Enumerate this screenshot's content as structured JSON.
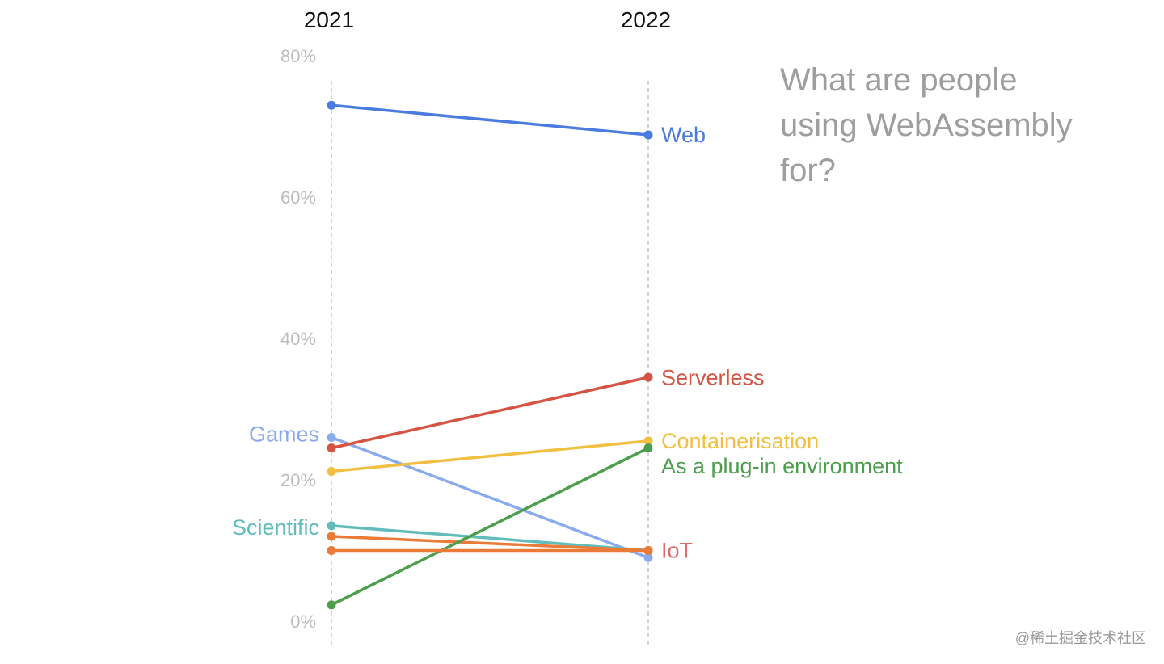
{
  "chart_data": {
    "type": "line",
    "title_lines": [
      "What are people",
      "using WebAssembly",
      "for?"
    ],
    "x": [
      "2021",
      "2022"
    ],
    "ylim": [
      0,
      80
    ],
    "yticks": [
      {
        "value": 0,
        "label": "0%"
      },
      {
        "value": 20,
        "label": "20%"
      },
      {
        "value": 40,
        "label": "40%"
      },
      {
        "value": 60,
        "label": "60%"
      },
      {
        "value": 80,
        "label": "80%"
      }
    ],
    "grid": false,
    "series": [
      {
        "name": "Web",
        "values": [
          73,
          68.8
        ],
        "color": "#4a7bde",
        "label_side": "right"
      },
      {
        "name": "Games",
        "values": [
          26,
          9
        ],
        "color": "#8aaaee",
        "label_side": "left"
      },
      {
        "name": "Serverless",
        "values": [
          24.5,
          34.5
        ],
        "color": "#d55443",
        "label_side": "right"
      },
      {
        "name": "Containerisation",
        "values": [
          21.2,
          25.5
        ],
        "color": "#f1c043",
        "label_side": "right"
      },
      {
        "name": "Scientific",
        "values": [
          13.5,
          10
        ],
        "color": "#63bcbc",
        "label_side": "left"
      },
      {
        "name": "",
        "values": [
          12,
          10
        ],
        "color": "#ea7a37",
        "label_side": "none"
      },
      {
        "name": "As a plug-in environment",
        "values": [
          2.3,
          24.5
        ],
        "color": "#4a9e4c",
        "label_side": "right"
      },
      {
        "name": "IoT",
        "values": [
          10,
          10
        ],
        "color": "#ea7a37",
        "label_side": "right",
        "label_color": "#e06a66"
      }
    ]
  },
  "watermark": "@稀土掘金技术社区"
}
